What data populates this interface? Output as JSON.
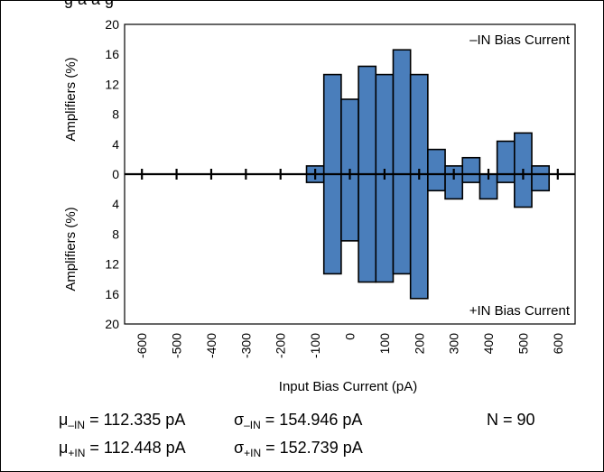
{
  "title_fragment": "g      a    a      g",
  "chart_data": {
    "type": "bar",
    "xlabel": "Input Bias Current (pA)",
    "ylabel_top": "Amplifiers (%)",
    "ylabel_bottom": "Amplifiers (%)",
    "legend_top": "–IN Bias Current",
    "legend_bottom": "+IN Bias Current",
    "xlim": [
      -650,
      650
    ],
    "ylim_top": [
      0,
      20
    ],
    "ylim_bottom": [
      0,
      20
    ],
    "x_ticks": [
      -600,
      -500,
      -400,
      -300,
      -200,
      -100,
      0,
      100,
      200,
      300,
      400,
      500,
      600
    ],
    "x_tick_labels": [
      "-600",
      "-500",
      "-400",
      "-300",
      "-200",
      "-100",
      "0",
      "100",
      "200",
      "300",
      "400",
      "500",
      "600"
    ],
    "y_tick_labels_top": [
      "0",
      "4",
      "8",
      "12",
      "16",
      "20"
    ],
    "y_tick_labels_bottom": [
      "0",
      "4",
      "8",
      "12",
      "16",
      "20"
    ],
    "bin_width": 50,
    "bin_centers": [
      -100,
      -50,
      0,
      50,
      100,
      150,
      200,
      250,
      300,
      350,
      400,
      450,
      500,
      550
    ],
    "series": [
      {
        "name": "–IN Bias Current",
        "direction": "up",
        "values": [
          1.1,
          13.3,
          10.0,
          14.4,
          13.3,
          16.6,
          13.3,
          3.3,
          1.1,
          2.2,
          0.0,
          4.4,
          5.5,
          1.1
        ]
      },
      {
        "name": "+IN Bias Current",
        "direction": "down",
        "values": [
          1.1,
          13.3,
          8.9,
          14.4,
          14.4,
          13.3,
          16.6,
          2.2,
          3.3,
          1.1,
          3.3,
          1.1,
          4.4,
          2.2
        ]
      }
    ],
    "bar_color": "#4a7ebb",
    "grid": false
  },
  "stats": {
    "mu_sym": "μ",
    "sigma_sym": "σ",
    "mu_minus_sub": "–IN",
    "mu_minus_value": " = 112.335 pA",
    "sigma_minus_sub": "–IN",
    "sigma_minus_value": " = 154.946 pA",
    "n_text": "N = 90",
    "mu_plus_sub": "+IN",
    "mu_plus_value": " = 112.448 pA",
    "sigma_plus_sub": "+IN",
    "sigma_plus_value": " = 152.739 pA"
  }
}
